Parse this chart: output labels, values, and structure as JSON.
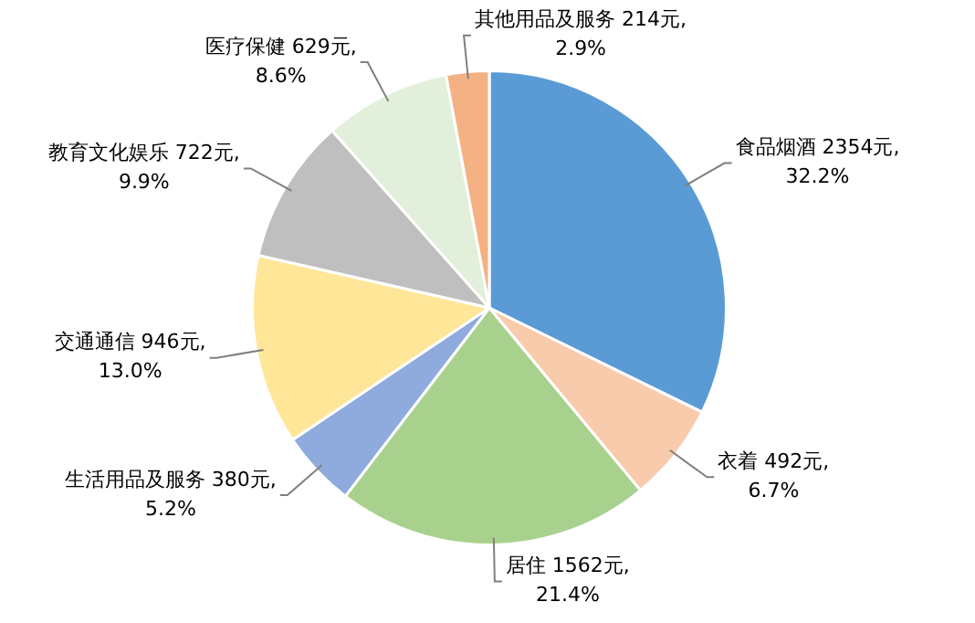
{
  "chart_data": {
    "type": "pie",
    "categories": [
      "食品烟酒",
      "衣着",
      "居住",
      "生活用品及服务",
      "交通通信",
      "教育文化娱乐",
      "医疗保健",
      "其他用品及服务"
    ],
    "values": [
      2354,
      492,
      1562,
      380,
      946,
      722,
      629,
      214
    ],
    "value_labels": [
      "2354元, 32.2%",
      "492元, 6.7%",
      "1562元, 21.4%",
      "380元, 5.2%",
      "946元, 13.0%",
      "722元, 9.9%",
      "629元, 8.6%",
      "214元, 2.9%"
    ],
    "colors": [
      "#5b9bd5",
      "#f8cbad",
      "#a9d18e",
      "#8faadc",
      "#ffe699",
      "#bfbfbf",
      "#e2efda",
      "#f4b183"
    ],
    "legend": false
  }
}
